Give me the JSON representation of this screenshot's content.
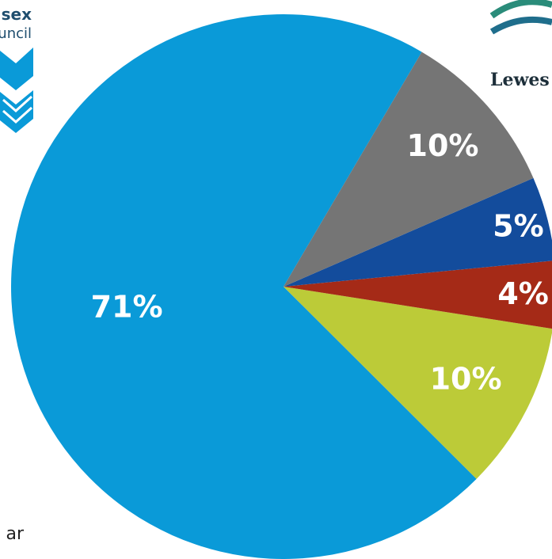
{
  "chart_data": {
    "type": "pie",
    "title": "",
    "categories": [
      "",
      "",
      "",
      "",
      ""
    ],
    "values": [
      71,
      10,
      4,
      5,
      10
    ],
    "labels": [
      "71%",
      "10%",
      "4%",
      "5%",
      "10%"
    ],
    "colors": [
      "#0a9ad8",
      "#bccb38",
      "#a52a17",
      "#134c9c",
      "#757575"
    ],
    "label_color": "#ffffff",
    "legend": "none"
  },
  "logos": {
    "left_line1": "sex",
    "left_line2": "uncil",
    "right_text": "Lewes",
    "left_color": "#0a9ad8",
    "right_color": "#2a8c7a"
  },
  "footnote": "ar"
}
